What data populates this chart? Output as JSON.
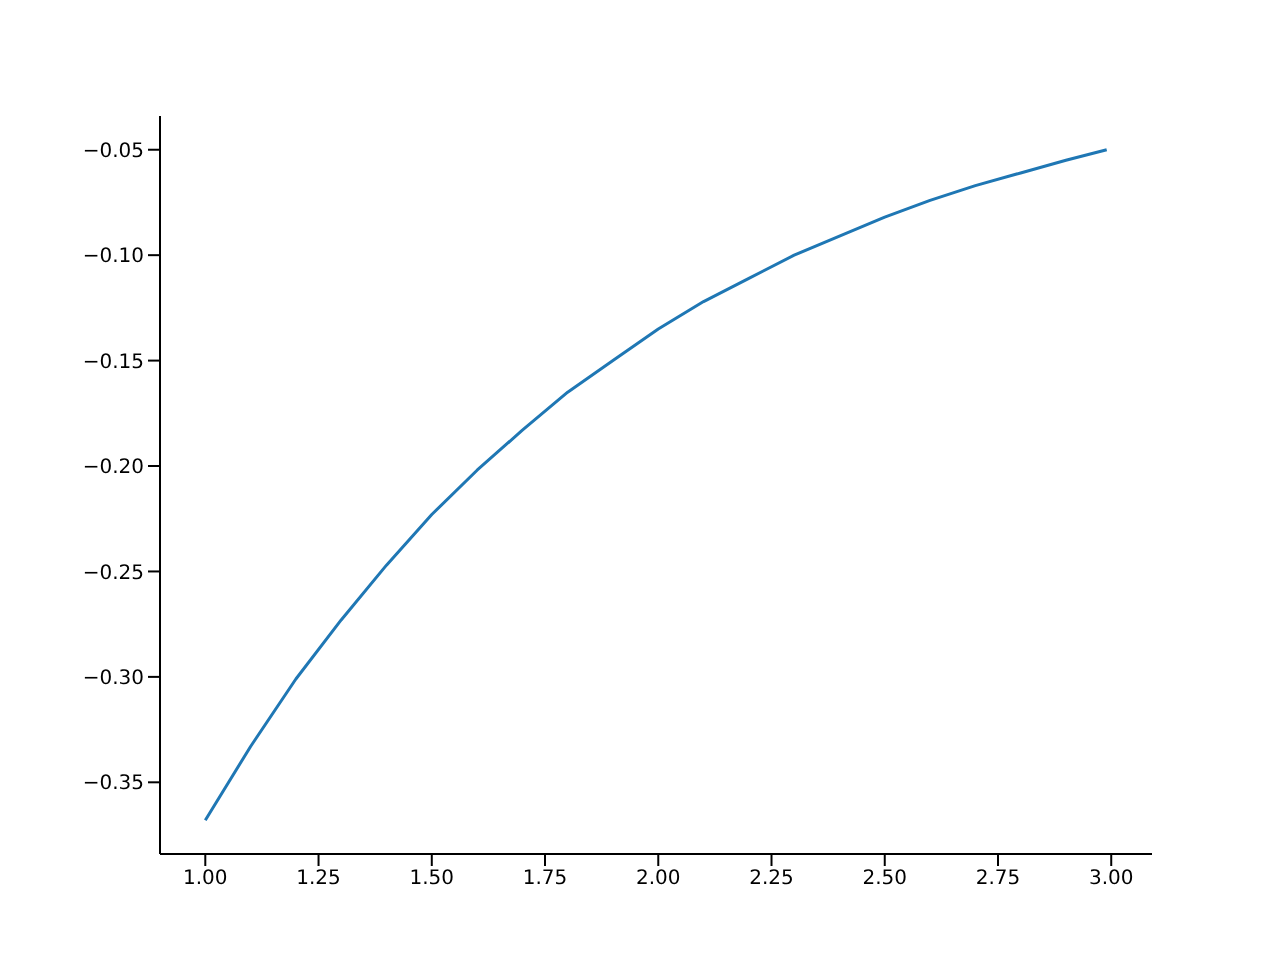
{
  "chart_data": {
    "type": "line",
    "x": [
      1,
      1.1,
      1.2,
      1.3,
      1.4,
      1.5,
      1.6,
      1.7,
      1.8,
      1.9,
      2,
      2.1,
      2.2,
      2.3,
      2.4,
      2.5,
      2.6,
      2.7,
      2.8,
      2.9,
      2.99
    ],
    "series": [
      {
        "color": "#1f77b4",
        "values": [
          -0.368,
          -0.333,
          -0.301,
          -0.273,
          -0.247,
          -0.223,
          -0.202,
          -0.183,
          -0.165,
          -0.15,
          -0.135,
          -0.122,
          -0.111,
          -0.1,
          -0.091,
          -0.082,
          -0.074,
          -0.067,
          -0.061,
          -0.055,
          -0.05
        ]
      }
    ],
    "xlim": [
      0.9,
      3.09
    ],
    "ylim": [
      -0.384,
      -0.034
    ],
    "xticks": [
      {
        "value": 1,
        "label": "1.00"
      },
      {
        "value": 1.25,
        "label": "1.25"
      },
      {
        "value": 1.5,
        "label": "1.50"
      },
      {
        "value": 1.75,
        "label": "1.75"
      },
      {
        "value": 2,
        "label": "2.00"
      },
      {
        "value": 2.25,
        "label": "2.25"
      },
      {
        "value": 2.5,
        "label": "2.50"
      },
      {
        "value": 2.75,
        "label": "2.75"
      },
      {
        "value": 3,
        "label": "3.00"
      }
    ],
    "yticks": [
      {
        "value": -0.35,
        "label": "−0.35"
      },
      {
        "value": -0.3,
        "label": "−0.30"
      },
      {
        "value": -0.25,
        "label": "−0.25"
      },
      {
        "value": -0.2,
        "label": "−0.20"
      },
      {
        "value": -0.15,
        "label": "−0.15"
      },
      {
        "value": -0.1,
        "label": "−0.10"
      },
      {
        "value": -0.05,
        "label": "−0.05"
      }
    ],
    "grid": false,
    "legend": false,
    "marker": "none",
    "line_style": "solid"
  }
}
